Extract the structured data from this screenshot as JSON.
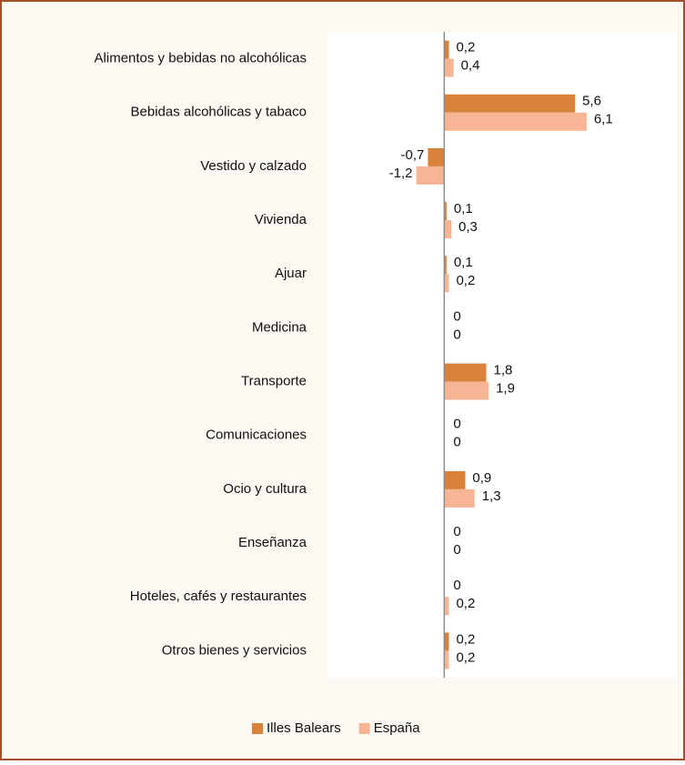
{
  "chart_data": {
    "type": "hbar",
    "categories": [
      "Alimentos y bebidas no alcohólicas",
      "Bebidas alcohólicas y tabaco",
      "Vestido y calzado",
      "Vivienda",
      "Ajuar",
      "Medicina",
      "Transporte",
      "Comunicaciones",
      "Ocio y cultura",
      "Enseñanza",
      "Hoteles, cafés y restaurantes",
      "Otros bienes y servicios"
    ],
    "series": [
      {
        "name": "Illes Balears",
        "color": "#d9823b",
        "values": [
          0.2,
          5.6,
          -0.7,
          0.1,
          0.1,
          0,
          1.8,
          0,
          0.9,
          0,
          0,
          0.2
        ],
        "value_labels": [
          "0,2",
          "5,6",
          "-0,7",
          "0,1",
          "0,1",
          "0",
          "1,8",
          "0",
          "0,9",
          "0",
          "0",
          "0,2"
        ]
      },
      {
        "name": "España",
        "color": "#f7b595",
        "values": [
          0.4,
          6.1,
          -1.2,
          0.3,
          0.2,
          0,
          1.9,
          0,
          1.3,
          0,
          0.2,
          0.2
        ],
        "value_labels": [
          "0,4",
          "6,1",
          "-1,2",
          "0,3",
          "0,2",
          "0",
          "1,9",
          "0",
          "1,3",
          "0",
          "0,2",
          "0,2"
        ]
      }
    ],
    "xlim": [
      -5,
      10
    ],
    "legend": "bottom"
  }
}
